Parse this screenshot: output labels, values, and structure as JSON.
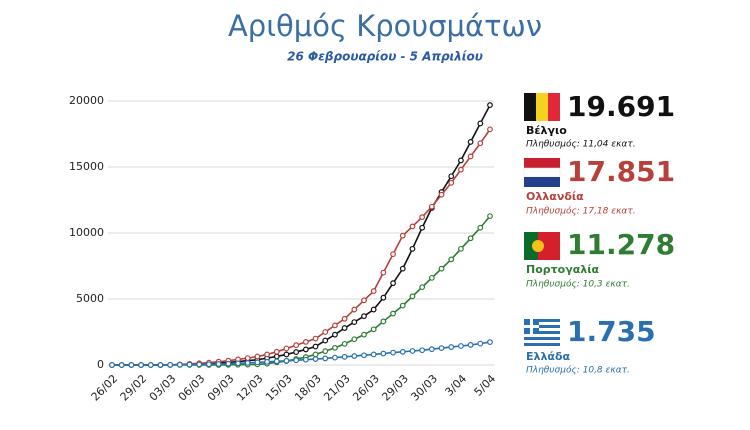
{
  "chart_data": {
    "type": "line",
    "title": "Αριθμός Κρουσμάτων",
    "subtitle": "26 Φεβρουαρίου - 5 Απριλίου",
    "categories": [
      "26/02",
      null,
      null,
      "29/02",
      null,
      null,
      "03/03",
      null,
      null,
      "06/03",
      null,
      null,
      "09/03",
      null,
      null,
      "12/03",
      null,
      null,
      "15/03",
      null,
      null,
      "18/03",
      null,
      null,
      "21/03",
      null,
      null,
      "26/03",
      null,
      null,
      "29/03",
      null,
      null,
      "30/03",
      null,
      null,
      "3/04",
      null,
      null,
      "5/04"
    ],
    "ylim": [
      0,
      20000
    ],
    "yticks": [
      0,
      5000,
      10000,
      15000,
      20000
    ],
    "grid": true,
    "series": [
      {
        "name": "Βέλγιο",
        "color": "#111111",
        "population": "Πληθυσμός: 11,04 εκατ.",
        "values": [
          0,
          0,
          0,
          0,
          0,
          0,
          10,
          30,
          60,
          100,
          130,
          160,
          200,
          260,
          330,
          400,
          520,
          650,
          800,
          980,
          1180,
          1400,
          1850,
          2300,
          2800,
          3250,
          3700,
          4200,
          5100,
          6200,
          7300,
          8800,
          10400,
          11900,
          13100,
          14300,
          15500,
          16900,
          18300,
          19691
        ],
        "value_labels": [
          null,
          null,
          null,
          null,
          null,
          null,
          null,
          null,
          null,
          null,
          null,
          null,
          null,
          null,
          null,
          null,
          null,
          null,
          null,
          null,
          null,
          null,
          null,
          null,
          null,
          null,
          null,
          null,
          null,
          null,
          null,
          null,
          null,
          null,
          null,
          null,
          null,
          null,
          null,
          "19.691"
        ]
      },
      {
        "name": "Ολλανδία",
        "color": "#b5413a",
        "population": "Πληθυσμός: 17,18 εκατ.",
        "values": [
          0,
          0,
          0,
          0,
          0,
          0,
          10,
          40,
          80,
          130,
          180,
          250,
          330,
          420,
          520,
          640,
          800,
          1000,
          1250,
          1500,
          1750,
          2000,
          2500,
          3000,
          3500,
          4200,
          4900,
          5600,
          7000,
          8400,
          9800,
          10500,
          11200,
          12000,
          12900,
          13800,
          14800,
          15800,
          16800,
          17851
        ],
        "value_labels": [
          null,
          null,
          null,
          null,
          null,
          null,
          null,
          null,
          null,
          null,
          null,
          null,
          null,
          null,
          null,
          null,
          null,
          null,
          null,
          null,
          null,
          null,
          null,
          null,
          null,
          null,
          null,
          null,
          null,
          null,
          null,
          null,
          null,
          null,
          null,
          null,
          null,
          null,
          null,
          "17.851"
        ]
      },
      {
        "name": "Πορτογαλία",
        "color": "#2e7d32",
        "population": "Πληθυσμός: 10,3 εκατ.",
        "values": [
          0,
          0,
          0,
          0,
          0,
          0,
          0,
          0,
          0,
          0,
          0,
          5,
          10,
          20,
          30,
          50,
          100,
          200,
          300,
          450,
          600,
          800,
          1050,
          1300,
          1600,
          1950,
          2300,
          2700,
          3300,
          3900,
          4500,
          5200,
          5900,
          6600,
          7300,
          8000,
          8800,
          9600,
          10400,
          11278
        ],
        "value_labels": [
          null,
          null,
          null,
          null,
          null,
          null,
          null,
          null,
          null,
          null,
          null,
          null,
          null,
          null,
          null,
          null,
          null,
          null,
          null,
          null,
          null,
          null,
          null,
          null,
          null,
          null,
          null,
          null,
          null,
          null,
          null,
          null,
          null,
          null,
          null,
          null,
          null,
          null,
          null,
          "11.278"
        ]
      },
      {
        "name": "Ελλάδα",
        "color": "#2a6fb0",
        "population": "Πληθυσμός: 10,8 εκατ.",
        "values": [
          0,
          0,
          0,
          0,
          0,
          5,
          10,
          20,
          30,
          45,
          60,
          80,
          100,
          130,
          160,
          200,
          240,
          280,
          320,
          360,
          400,
          450,
          500,
          560,
          620,
          680,
          740,
          800,
          870,
          940,
          1000,
          1060,
          1120,
          1200,
          1280,
          1360,
          1440,
          1520,
          1620,
          1735
        ],
        "value_labels": [
          null,
          null,
          null,
          null,
          null,
          null,
          null,
          null,
          null,
          null,
          null,
          null,
          null,
          null,
          null,
          null,
          null,
          null,
          null,
          null,
          null,
          null,
          null,
          null,
          null,
          null,
          null,
          null,
          null,
          null,
          null,
          null,
          null,
          null,
          null,
          null,
          null,
          null,
          null,
          "1.735"
        ]
      }
    ]
  }
}
